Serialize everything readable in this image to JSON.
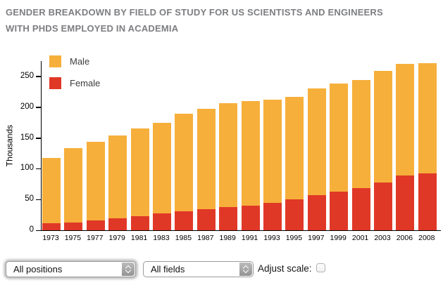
{
  "title": "GENDER BREAKDOWN BY FIELD OF STUDY FOR US SCIENTISTS AND ENGINEERS WITH PHDS EMPLOYED IN ACADEMIA",
  "chart_data": {
    "type": "bar",
    "stacked": true,
    "categories": [
      "1973",
      "1975",
      "1977",
      "1979",
      "1981",
      "1983",
      "1985",
      "1987",
      "1989",
      "1991",
      "1993",
      "1995",
      "1997",
      "1999",
      "2001",
      "2003",
      "2006",
      "2008"
    ],
    "series": [
      {
        "name": "Male",
        "color": "#F6AF3B",
        "values": [
          107,
          120,
          128,
          135,
          142,
          148,
          158,
          163,
          168,
          170,
          167,
          167,
          174,
          176,
          175,
          181,
          182,
          179
        ]
      },
      {
        "name": "Female",
        "color": "#E03827",
        "values": [
          11,
          13,
          16,
          19,
          23,
          27,
          31,
          34,
          38,
          40,
          45,
          50,
          57,
          63,
          69,
          78,
          89,
          93
        ]
      }
    ],
    "totals": [
      118,
      133,
      144,
      154,
      165,
      175,
      189,
      197,
      206,
      210,
      212,
      217,
      231,
      239,
      244,
      259,
      271,
      272
    ],
    "title": "GENDER BREAKDOWN BY FIELD OF STUDY FOR US SCIENTISTS AND ENGINEERS WITH PHDS EMPLOYED IN ACADEMIA",
    "xlabel": "",
    "ylabel": "Thousands",
    "yticks": [
      0,
      50,
      100,
      150,
      200,
      250
    ],
    "ylim": [
      0,
      275
    ],
    "grid": false,
    "legend_position": "top-left-inside",
    "stack_order_bottom_to_top": [
      "Female",
      "Male"
    ]
  },
  "controls": {
    "position_select": {
      "value": "All positions"
    },
    "field_select": {
      "value": "All fields"
    },
    "adjust_scale_label": "Adjust scale:",
    "adjust_scale_checked": false
  },
  "colors": {
    "male": "#F6AF3B",
    "female": "#E03827",
    "title_text": "#7D7E81",
    "axis": "#000000"
  }
}
